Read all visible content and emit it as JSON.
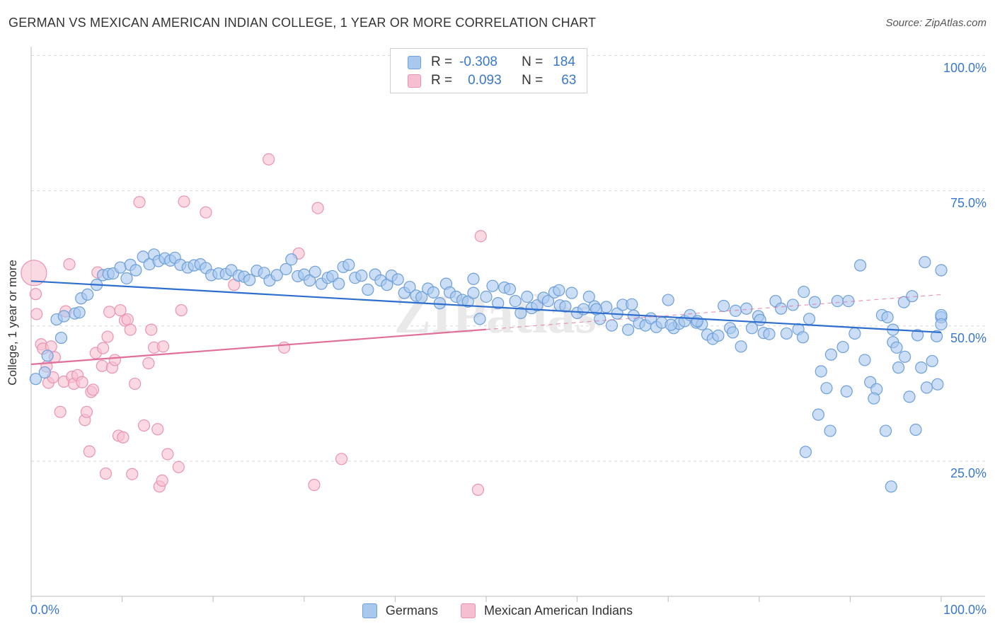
{
  "header": {
    "title": "GERMAN VS MEXICAN AMERICAN INDIAN COLLEGE, 1 YEAR OR MORE CORRELATION CHART",
    "source": "Source: ZipAtlas.com"
  },
  "legend": {
    "german": {
      "r_label": "R =",
      "r_value": "-0.308",
      "n_label": "N =",
      "n_value": "184"
    },
    "mexican": {
      "r_label": "R =",
      "r_value": "0.093",
      "n_label": "N =",
      "n_value": "63"
    }
  },
  "bottom_legend": [
    "Germans",
    "Mexican American Indians"
  ],
  "watermark": "ZIPatlas",
  "colors": {
    "german_fill": "#a9c8ee",
    "german_stroke": "#6d9fd8",
    "german_line": "#2e6fce",
    "mexican_fill": "#f6bfd1",
    "mexican_stroke": "#e993b2",
    "mexican_line": "#e0709a",
    "tick_text": "#3a78c9",
    "grid": "#d9d9d9"
  },
  "chart_data": {
    "type": "scatter",
    "title": "GERMAN VS MEXICAN AMERICAN INDIAN COLLEGE, 1 YEAR OR MORE CORRELATION CHART",
    "xlabel": "",
    "ylabel": "College, 1 year or more",
    "xlim": [
      0,
      100
    ],
    "ylim": [
      0,
      100
    ],
    "x_tick_labels": [
      "0.0%",
      "100.0%"
    ],
    "y_ticks": [
      25,
      50,
      75,
      100
    ],
    "y_tick_labels": [
      "25.0%",
      "50.0%",
      "75.0%",
      "100.0%"
    ],
    "grid": true,
    "legend_position": "top-center",
    "series": [
      {
        "name": "Germans",
        "r": -0.308,
        "n": 184,
        "trend": {
          "x": [
            0,
            100
          ],
          "y": [
            58.3,
            48.8
          ]
        },
        "points": [
          [
            0.5,
            40.2
          ],
          [
            1.5,
            41.4
          ],
          [
            1.8,
            44.5
          ],
          [
            2.8,
            51.2
          ],
          [
            3.3,
            47.8
          ],
          [
            3.6,
            51.8
          ],
          [
            4.8,
            52.3
          ],
          [
            5.3,
            52.5
          ],
          [
            5.5,
            55.1
          ],
          [
            6.2,
            55.8
          ],
          [
            7.2,
            57.6
          ],
          [
            7.9,
            59.4
          ],
          [
            8.5,
            59.6
          ],
          [
            9.0,
            59.7
          ],
          [
            9.8,
            60.8
          ],
          [
            10.5,
            58.8
          ],
          [
            10.9,
            61.3
          ],
          [
            11.5,
            60.3
          ],
          [
            12.3,
            62.8
          ],
          [
            13.0,
            61.4
          ],
          [
            13.5,
            63.2
          ],
          [
            14.0,
            62.0
          ],
          [
            14.7,
            62.5
          ],
          [
            15.3,
            62.1
          ],
          [
            15.8,
            62.6
          ],
          [
            16.4,
            61.3
          ],
          [
            17.2,
            60.8
          ],
          [
            17.9,
            61.2
          ],
          [
            18.6,
            61.4
          ],
          [
            19.2,
            60.7
          ],
          [
            19.8,
            59.4
          ],
          [
            20.6,
            59.7
          ],
          [
            21.4,
            59.6
          ],
          [
            22.0,
            60.3
          ],
          [
            22.8,
            59.3
          ],
          [
            23.4,
            59.1
          ],
          [
            24.0,
            58.5
          ],
          [
            24.8,
            60.2
          ],
          [
            25.6,
            59.8
          ],
          [
            26.2,
            58.4
          ],
          [
            27.0,
            59.4
          ],
          [
            28.0,
            60.5
          ],
          [
            28.6,
            62.3
          ],
          [
            29.3,
            59.2
          ],
          [
            30.0,
            59.5
          ],
          [
            30.6,
            58.4
          ],
          [
            31.2,
            60.0
          ],
          [
            31.9,
            57.8
          ],
          [
            32.6,
            58.9
          ],
          [
            33.1,
            59.2
          ],
          [
            33.8,
            57.8
          ],
          [
            34.3,
            60.9
          ],
          [
            34.9,
            61.3
          ],
          [
            35.6,
            58.9
          ],
          [
            36.3,
            59.3
          ],
          [
            37.0,
            56.7
          ],
          [
            37.8,
            59.5
          ],
          [
            38.4,
            58.4
          ],
          [
            39.1,
            57.6
          ],
          [
            39.6,
            59.3
          ],
          [
            40.3,
            58.6
          ],
          [
            41.0,
            56.1
          ],
          [
            41.6,
            57.2
          ],
          [
            42.3,
            55.6
          ],
          [
            42.9,
            55.3
          ],
          [
            43.6,
            56.9
          ],
          [
            44.2,
            56.2
          ],
          [
            44.9,
            54.2
          ],
          [
            45.6,
            57.8
          ],
          [
            46.0,
            56.2
          ],
          [
            46.7,
            55.4
          ],
          [
            47.4,
            54.8
          ],
          [
            48.0,
            54.5
          ],
          [
            48.6,
            56.1
          ],
          [
            49.3,
            51.3
          ],
          [
            50.0,
            55.4
          ],
          [
            50.7,
            57.4
          ],
          [
            51.3,
            54.2
          ],
          [
            52.0,
            57.1
          ],
          [
            52.6,
            56.8
          ],
          [
            53.2,
            54.6
          ],
          [
            53.8,
            52.4
          ],
          [
            54.5,
            55.4
          ],
          [
            55.0,
            53.3
          ],
          [
            55.6,
            53.8
          ],
          [
            56.3,
            55.2
          ],
          [
            56.8,
            54.6
          ],
          [
            57.5,
            56.2
          ],
          [
            58.1,
            53.8
          ],
          [
            58.7,
            53.6
          ],
          [
            59.4,
            56.1
          ],
          [
            60.0,
            52.4
          ],
          [
            60.7,
            53.1
          ],
          [
            61.3,
            55.4
          ],
          [
            61.9,
            53.6
          ],
          [
            62.5,
            51.3
          ],
          [
            63.2,
            53.5
          ],
          [
            63.8,
            50.1
          ],
          [
            64.4,
            52.3
          ],
          [
            65.0,
            53.9
          ],
          [
            65.6,
            49.3
          ],
          [
            66.2,
            51.9
          ],
          [
            66.8,
            50.5
          ],
          [
            67.5,
            50.1
          ],
          [
            68.1,
            51.4
          ],
          [
            68.7,
            49.8
          ],
          [
            69.3,
            50.6
          ],
          [
            70.0,
            54.8
          ],
          [
            70.6,
            49.6
          ],
          [
            71.2,
            50.4
          ],
          [
            71.8,
            50.9
          ],
          [
            72.4,
            52.0
          ],
          [
            73.1,
            50.6
          ],
          [
            73.7,
            50.3
          ],
          [
            74.3,
            48.4
          ],
          [
            74.9,
            47.6
          ],
          [
            75.5,
            48.2
          ],
          [
            76.1,
            53.7
          ],
          [
            76.8,
            49.6
          ],
          [
            77.4,
            52.8
          ],
          [
            78.0,
            46.2
          ],
          [
            78.6,
            53.2
          ],
          [
            79.2,
            49.6
          ],
          [
            79.9,
            51.8
          ],
          [
            80.5,
            48.7
          ],
          [
            81.1,
            48.5
          ],
          [
            81.8,
            54.6
          ],
          [
            82.4,
            53.2
          ],
          [
            83.0,
            48.6
          ],
          [
            83.7,
            53.9
          ],
          [
            84.3,
            49.4
          ],
          [
            84.9,
            56.3
          ],
          [
            85.5,
            51.3
          ],
          [
            86.1,
            54.4
          ],
          [
            86.8,
            41.6
          ],
          [
            87.4,
            38.5
          ],
          [
            87.9,
            44.7
          ],
          [
            88.6,
            54.6
          ],
          [
            89.2,
            46.1
          ],
          [
            89.8,
            54.6
          ],
          [
            90.5,
            48.6
          ],
          [
            91.1,
            61.2
          ],
          [
            91.6,
            43.7
          ],
          [
            92.2,
            39.6
          ],
          [
            92.9,
            38.3
          ],
          [
            93.5,
            52.0
          ],
          [
            94.1,
            51.6
          ],
          [
            94.7,
            47.0
          ],
          [
            95.3,
            42.3
          ],
          [
            95.9,
            54.4
          ],
          [
            96.5,
            36.9
          ],
          [
            97.2,
            30.8
          ],
          [
            97.8,
            42.3
          ],
          [
            98.4,
            38.6
          ],
          [
            99.0,
            43.5
          ],
          [
            99.5,
            48.1
          ],
          [
            100.0,
            51.6
          ],
          [
            48.6,
            58.7
          ],
          [
            58.0,
            56.6
          ],
          [
            70.3,
            50.2
          ],
          [
            66.0,
            54.0
          ],
          [
            73.2,
            50.9
          ],
          [
            62.1,
            53.1
          ],
          [
            77.1,
            48.8
          ],
          [
            80.1,
            51.1
          ],
          [
            84.8,
            47.9
          ],
          [
            85.1,
            26.7
          ],
          [
            86.5,
            33.6
          ],
          [
            87.8,
            30.6
          ],
          [
            89.6,
            37.9
          ],
          [
            92.6,
            36.6
          ],
          [
            93.9,
            30.6
          ],
          [
            94.5,
            20.3
          ],
          [
            95.1,
            46.0
          ],
          [
            96.0,
            44.3
          ],
          [
            94.7,
            49.3
          ],
          [
            97.4,
            48.3
          ],
          [
            100.0,
            60.3
          ],
          [
            98.2,
            61.8
          ],
          [
            96.8,
            55.5
          ],
          [
            99.6,
            39.2
          ],
          [
            100.0,
            52.0
          ],
          [
            100.0,
            50.3
          ]
        ]
      },
      {
        "name": "Mexican American Indians",
        "r": 0.093,
        "n": 63,
        "trend": {
          "x": [
            0,
            100
          ],
          "y": [
            42.9,
            55.8
          ]
        },
        "points": [
          [
            0.3,
            59.8
          ],
          [
            0.5,
            55.9
          ],
          [
            0.6,
            52.2
          ],
          [
            1.1,
            46.6
          ],
          [
            1.3,
            45.8
          ],
          [
            1.7,
            42.5
          ],
          [
            1.9,
            39.5
          ],
          [
            2.2,
            46.2
          ],
          [
            2.4,
            40.5
          ],
          [
            2.6,
            44.2
          ],
          [
            3.2,
            34.1
          ],
          [
            3.6,
            39.7
          ],
          [
            3.8,
            52.7
          ],
          [
            4.2,
            61.4
          ],
          [
            4.5,
            40.6
          ],
          [
            4.7,
            39.3
          ],
          [
            5.1,
            40.9
          ],
          [
            5.6,
            39.6
          ],
          [
            5.9,
            32.6
          ],
          [
            6.1,
            34.1
          ],
          [
            6.4,
            26.8
          ],
          [
            6.6,
            37.8
          ],
          [
            6.8,
            38.2
          ],
          [
            7.1,
            45.0
          ],
          [
            7.3,
            59.9
          ],
          [
            7.8,
            42.6
          ],
          [
            8.2,
            22.7
          ],
          [
            8.4,
            48.0
          ],
          [
            8.6,
            52.6
          ],
          [
            8.9,
            42.3
          ],
          [
            9.2,
            43.7
          ],
          [
            9.6,
            29.7
          ],
          [
            10.1,
            29.4
          ],
          [
            10.3,
            51.0
          ],
          [
            10.6,
            51.2
          ],
          [
            10.9,
            49.3
          ],
          [
            11.1,
            22.6
          ],
          [
            11.4,
            39.3
          ],
          [
            11.9,
            72.9
          ],
          [
            12.4,
            31.6
          ],
          [
            12.9,
            43.1
          ],
          [
            13.5,
            46.0
          ],
          [
            13.9,
            30.9
          ],
          [
            14.1,
            20.3
          ],
          [
            14.4,
            21.4
          ],
          [
            15.0,
            26.3
          ],
          [
            16.2,
            23.9
          ],
          [
            16.5,
            52.9
          ],
          [
            16.8,
            73.0
          ],
          [
            19.2,
            71.0
          ],
          [
            22.3,
            57.6
          ],
          [
            26.1,
            80.8
          ],
          [
            27.8,
            46.0
          ],
          [
            29.4,
            63.4
          ],
          [
            31.1,
            20.6
          ],
          [
            31.5,
            71.8
          ],
          [
            34.1,
            25.4
          ],
          [
            49.1,
            19.7
          ],
          [
            49.4,
            66.6
          ],
          [
            13.2,
            49.3
          ],
          [
            7.9,
            45.9
          ],
          [
            9.8,
            52.9
          ],
          [
            14.5,
            46.2
          ]
        ]
      }
    ]
  }
}
